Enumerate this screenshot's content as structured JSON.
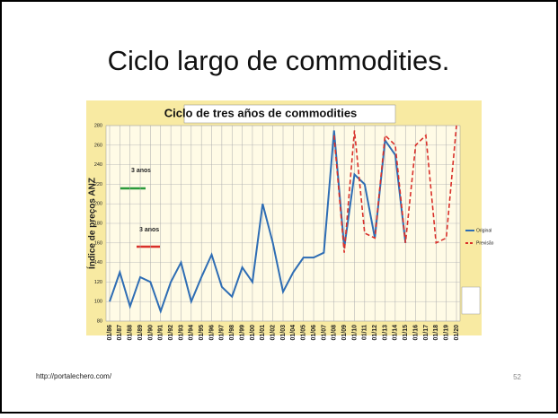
{
  "slide": {
    "title": "Ciclo largo de commodities.",
    "footer": "http://portalechero.com/",
    "page_number": "52"
  },
  "chart_data": {
    "type": "line",
    "title": "Ciclo de tres años de commodities",
    "y_label": "Índice de preços ANZ",
    "categories": [
      "01/86",
      "01/87",
      "01/88",
      "01/89",
      "01/90",
      "01/91",
      "01/92",
      "01/93",
      "01/94",
      "01/95",
      "01/96",
      "01/97",
      "01/98",
      "01/99",
      "01/00",
      "01/01",
      "01/02",
      "01/03",
      "01/04",
      "01/05",
      "01/06",
      "01/07",
      "01/08",
      "01/09",
      "01/10",
      "01/11",
      "01/12",
      "01/13",
      "01/14",
      "01/15",
      "01/16",
      "01/17",
      "01/18",
      "01/19",
      "01/20"
    ],
    "series": [
      {
        "name": "Original",
        "color": "#2e6db4",
        "dashed": false,
        "values": [
          100,
          130,
          95,
          125,
          120,
          90,
          120,
          140,
          100,
          125,
          148,
          115,
          105,
          135,
          120,
          200,
          160,
          110,
          130,
          145,
          145,
          150,
          275,
          155,
          230,
          220,
          165,
          265,
          250,
          160,
          null,
          null,
          null,
          null,
          null
        ]
      },
      {
        "name": "Previsão",
        "color": "#d9302a",
        "dashed": true,
        "values": [
          null,
          null,
          null,
          null,
          null,
          null,
          null,
          null,
          null,
          null,
          null,
          null,
          null,
          null,
          null,
          null,
          null,
          null,
          null,
          null,
          null,
          null,
          270,
          150,
          275,
          170,
          165,
          270,
          260,
          160,
          260,
          270,
          160,
          165,
          280
        ]
      }
    ],
    "ylim": [
      80,
      280
    ],
    "yticks": [
      80,
      100,
      120,
      140,
      160,
      180,
      200,
      220,
      240,
      260,
      280
    ],
    "grid": true,
    "legend": "right",
    "annotations": [
      "3 anos",
      "3 anos"
    ]
  }
}
